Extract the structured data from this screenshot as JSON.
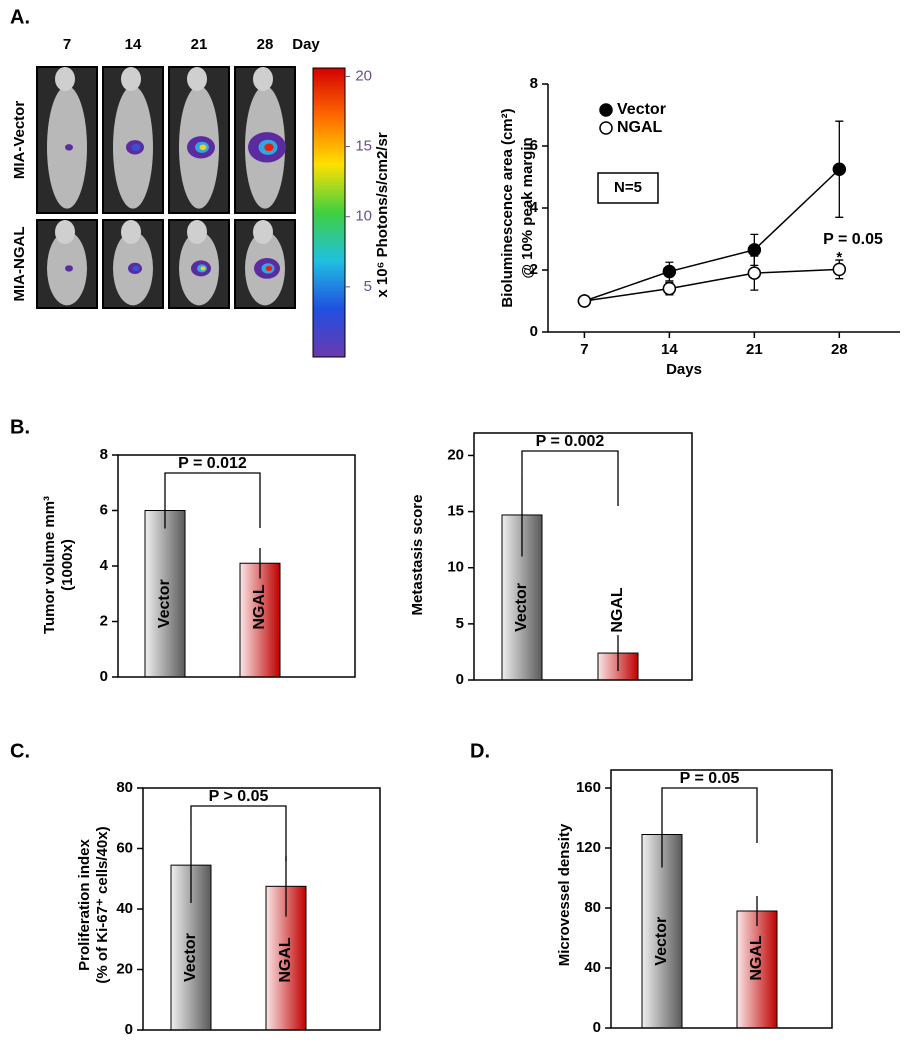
{
  "panels": {
    "a": "A.",
    "b": "B.",
    "c": "C.",
    "d": "D."
  },
  "imaging": {
    "columns": [
      "7",
      "14",
      "21",
      "28"
    ],
    "column_unit": "Day",
    "rows": [
      "MIA-Vector",
      "MIA-NGAL"
    ],
    "colorbar": {
      "lim": [
        0,
        20.6
      ],
      "ticks": [
        5,
        10,
        15,
        20
      ],
      "label": "x 10⁶ Photons/s/cm2/sr"
    }
  },
  "chart_data": [
    {
      "type": "line",
      "x": [
        7,
        14,
        21,
        28
      ],
      "xlim": [
        4,
        33
      ],
      "xticks": [
        7,
        14,
        21,
        28
      ],
      "ylim": [
        0,
        8
      ],
      "yticks": [
        0,
        2,
        4,
        6,
        8
      ],
      "xlabel": "Days",
      "ylabel": [
        "Bioluminescence area (cm²)",
        "@ 10% peak margin"
      ],
      "series": [
        {
          "name": "Vector",
          "color": "#000000",
          "marker": "filled",
          "values": [
            1,
            1.95,
            2.65,
            5.25
          ],
          "errors": [
            0,
            0.3,
            0.5,
            1.55
          ]
        },
        {
          "name": "NGAL",
          "color": "#000000",
          "marker": "open",
          "values": [
            1,
            1.4,
            1.9,
            2.02
          ],
          "errors": [
            0,
            0.2,
            0.55,
            0.3
          ]
        }
      ],
      "annotations": [
        "N=5",
        "P = 0.05",
        "*"
      ]
    },
    {
      "type": "bar",
      "categories": [
        "Vector",
        "NGAL"
      ],
      "colors": [
        "#5a5a5a",
        "#c00000"
      ],
      "values": [
        6.0,
        4.1
      ],
      "errors": [
        0.65,
        0.55
      ],
      "ylim": [
        0,
        8
      ],
      "yticks": [
        0,
        2,
        4,
        6,
        8
      ],
      "ylabel": [
        "Tumor volume mm³",
        "(1000x)"
      ],
      "annotation": "P = 0.012"
    },
    {
      "type": "bar",
      "categories": [
        "Vector",
        "NGAL"
      ],
      "colors": [
        "#5a5a5a",
        "#c00000"
      ],
      "values": [
        14.7,
        2.4
      ],
      "errors": [
        3.7,
        1.6
      ],
      "ylim": [
        0,
        22
      ],
      "yticks": [
        0,
        5,
        10,
        15,
        20
      ],
      "ylabel": [
        "Metastasis score"
      ],
      "annotation": "P = 0.002"
    },
    {
      "type": "bar",
      "categories": [
        "Vector",
        "NGAL"
      ],
      "colors": [
        "#5a5a5a",
        "#c00000"
      ],
      "values": [
        54.5,
        47.5
      ],
      "errors": [
        12.5,
        10
      ],
      "ylim": [
        0,
        80
      ],
      "yticks": [
        0,
        20,
        40,
        60,
        80
      ],
      "ylabel": [
        "Proliferation index",
        "(% of Ki-67⁺ cells/40x)"
      ],
      "annotation": "P > 0.05"
    },
    {
      "type": "bar",
      "categories": [
        "Vector",
        "NGAL"
      ],
      "colors": [
        "#5a5a5a",
        "#c00000"
      ],
      "values": [
        129,
        78
      ],
      "errors": [
        22,
        10
      ],
      "ylim": [
        0,
        172
      ],
      "yticks": [
        0,
        40,
        80,
        120,
        160
      ],
      "ylabel": [
        "Microvessel density"
      ],
      "annotation": "P = 0.05"
    }
  ]
}
